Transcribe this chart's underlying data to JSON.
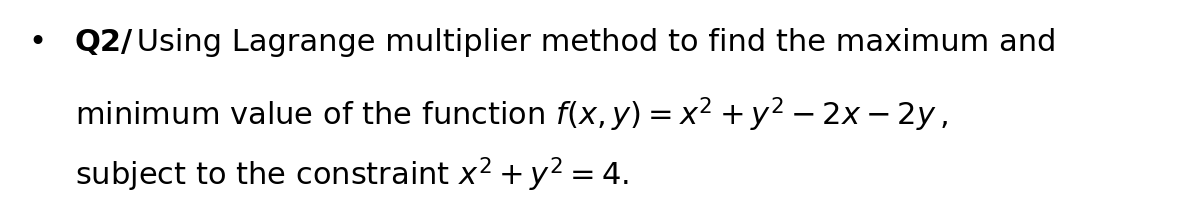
{
  "background_color": "#ffffff",
  "text_color": "#000000",
  "bullet": "•",
  "bold_part": "Q2/",
  "line1_normal": " Using Lagrange multiplier method to find the maximum and",
  "fontsize": 22,
  "fig_width": 12.0,
  "fig_height": 2.12,
  "dpi": 100
}
